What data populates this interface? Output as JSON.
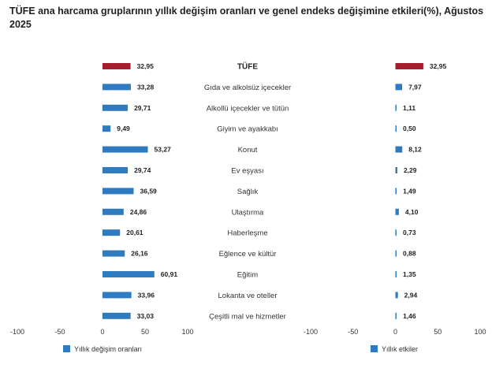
{
  "title": "TÜFE ana harcama gruplarının yıllık değişim oranları ve genel endeks değişimine etkileri(%), Ağustos 2025",
  "colors": {
    "highlight": "#a51e2d",
    "bar": "#2f7bbf"
  },
  "chart_data": [
    {
      "type": "bar",
      "orientation": "horizontal",
      "categories": [
        "TÜFE",
        "Gıda ve alkolsüz içecekler",
        "Alkollü içecekler ve tütün",
        "Giyim ve ayakkabı",
        "Konut",
        "Ev eşyası",
        "Sağlık",
        "Ulaştırma",
        "Haberleşme",
        "Eğlence ve kültür",
        "Eğitim",
        "Lokanta ve oteller",
        "Çeşitli mal ve hizmetler"
      ],
      "series": [
        {
          "name": "Yıllık değişim oranları",
          "values": [
            32.95,
            33.28,
            29.71,
            9.49,
            53.27,
            29.74,
            36.59,
            24.86,
            20.61,
            26.16,
            60.91,
            33.96,
            33.03
          ],
          "labels": [
            "32,95",
            "33,28",
            "29,71",
            "9,49",
            "53,27",
            "29,74",
            "36,59",
            "24,86",
            "20,61",
            "26,16",
            "60,91",
            "33,96",
            "33,03"
          ]
        }
      ],
      "xlim": [
        -100,
        100
      ],
      "ticks": [
        "-100",
        "-50",
        "0",
        "50",
        "100"
      ],
      "legend": "bottom-left"
    },
    {
      "type": "bar",
      "orientation": "horizontal",
      "categories": [
        "TÜFE",
        "Gıda ve alkolsüz içecekler",
        "Alkollü içecekler ve tütün",
        "Giyim ve ayakkabı",
        "Konut",
        "Ev eşyası",
        "Sağlık",
        "Ulaştırma",
        "Haberleşme",
        "Eğlence ve kültür",
        "Eğitim",
        "Lokanta ve oteller",
        "Çeşitli mal ve hizmetler"
      ],
      "series": [
        {
          "name": "Yıllık etkiler",
          "values": [
            32.95,
            7.97,
            1.11,
            0.5,
            8.12,
            2.29,
            1.49,
            4.1,
            0.73,
            0.88,
            1.35,
            2.94,
            1.46
          ],
          "labels": [
            "32,95",
            "7,97",
            "1,11",
            "0,50",
            "8,12",
            "2,29",
            "1,49",
            "4,10",
            "0,73",
            "0,88",
            "1,35",
            "2,94",
            "1,46"
          ]
        }
      ],
      "xlim": [
        -100,
        100
      ],
      "ticks": [
        "-100",
        "-50",
        "0",
        "50",
        "100"
      ],
      "legend": "bottom-left"
    }
  ]
}
